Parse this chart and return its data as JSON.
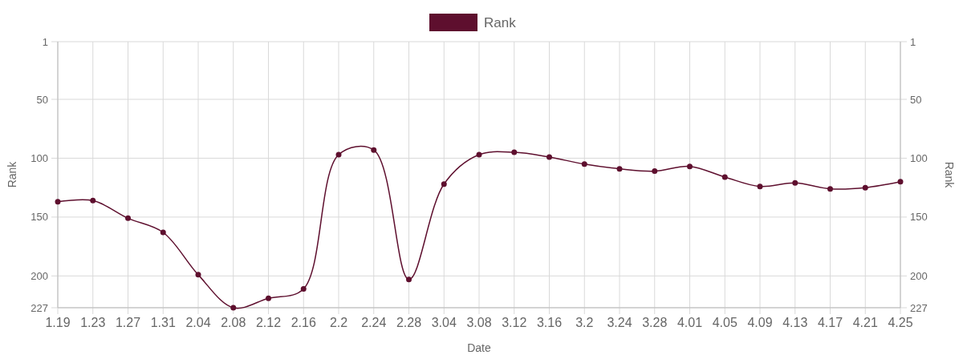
{
  "chart_data": {
    "type": "line",
    "xlabel": "Date",
    "ylabel": "Rank",
    "y2label": "Rank",
    "categories": [
      "1.19",
      "1.23",
      "1.27",
      "1.31",
      "2.04",
      "2.08",
      "2.12",
      "2.16",
      "2.2",
      "2.24",
      "2.28",
      "3.04",
      "3.08",
      "3.12",
      "3.16",
      "3.2",
      "3.24",
      "3.28",
      "4.01",
      "4.05",
      "4.09",
      "4.13",
      "4.17",
      "4.21",
      "4.25"
    ],
    "series": [
      {
        "name": "Rank",
        "color": "#5e0f2e",
        "values": [
          137,
          136,
          151,
          163,
          199,
          227,
          219,
          211,
          97,
          93,
          203,
          122,
          97,
          95,
          99,
          105,
          109,
          111,
          107,
          116,
          124,
          121,
          126,
          125,
          120
        ]
      }
    ],
    "ylim": [
      227,
      1
    ],
    "yticks": [
      1,
      50,
      100,
      150,
      200,
      227
    ],
    "y2lim": [
      227,
      1
    ],
    "y2ticks": [
      1,
      50,
      100,
      150,
      200,
      227
    ],
    "grid": true,
    "legend": "top",
    "marker": "circle",
    "line_style": "solid"
  }
}
